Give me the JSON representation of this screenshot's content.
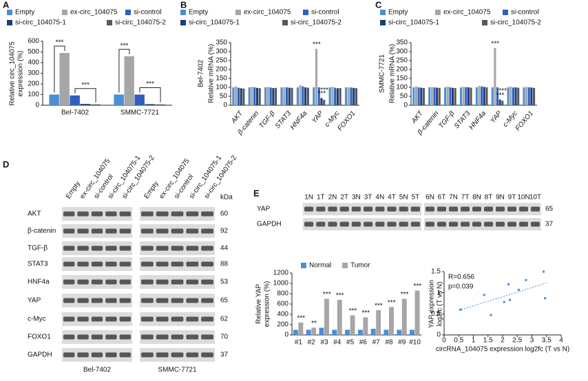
{
  "panels": [
    "A",
    "B",
    "C",
    "D",
    "E"
  ],
  "chart_data": [
    {
      "type": "bar",
      "ylabel": [
        "Relative circ_104075",
        "expression (%)"
      ],
      "categories": [
        "Bel-7402",
        "SMMC-7721"
      ],
      "series": [
        {
          "name": "Empty",
          "color": "#4a8fd6",
          "values": [
            100,
            100
          ]
        },
        {
          "name": "ex-circ_104075",
          "color": "#a6a6a6",
          "values": [
            490,
            460
          ]
        },
        {
          "name": "si-control",
          "color": "#2f5fbf",
          "values": [
            92,
            100
          ]
        },
        {
          "name": "si-circ_104075-1",
          "color": "#1a3f78",
          "values": [
            12,
            10
          ]
        },
        {
          "name": "si-circ_104075-2",
          "color": "#595959",
          "values": [
            8,
            8
          ]
        }
      ],
      "ylim": [
        0,
        600
      ],
      "yticks": [
        0,
        100,
        200,
        300,
        400,
        500,
        600
      ],
      "annotations": [
        "***",
        "***",
        "***",
        "***"
      ]
    },
    {
      "type": "bar",
      "subtitle": "Bel-7402",
      "ylabel": "Relative mRNA (%)",
      "categories": [
        "AKT",
        "β-catenin",
        "TGF-β",
        "STAT3",
        "HNF4a",
        "YAP",
        "c-Myc",
        "FOXO1"
      ],
      "series": [
        {
          "name": "Empty",
          "color": "#4a8fd6",
          "values": [
            100,
            100,
            100,
            100,
            100,
            100,
            100,
            100
          ]
        },
        {
          "name": "ex-circ_104075",
          "color": "#a6a6a6",
          "values": [
            105,
            103,
            102,
            101,
            112,
            315,
            103,
            100
          ]
        },
        {
          "name": "si-control",
          "color": "#2f5fbf",
          "values": [
            98,
            100,
            99,
            100,
            105,
            100,
            98,
            99
          ]
        },
        {
          "name": "si-circ_104075-1",
          "color": "#1a3f78",
          "values": [
            95,
            97,
            96,
            98,
            100,
            40,
            95,
            97
          ]
        },
        {
          "name": "si-circ_104075-2",
          "color": "#595959",
          "values": [
            93,
            95,
            97,
            97,
            98,
            30,
            96,
            95
          ]
        }
      ],
      "ylim": [
        0,
        350
      ],
      "yticks": [
        0,
        50,
        100,
        150,
        200,
        250,
        300,
        350
      ],
      "annotations": [
        "***",
        "***",
        "***"
      ]
    },
    {
      "type": "bar",
      "subtitle": "SMMC-7721",
      "ylabel": "Relative mRNA (%)",
      "categories": [
        "AKT",
        "β-catenin",
        "TGF-β",
        "STAT3",
        "HNF4a",
        "YAP",
        "c-Myc",
        "FOXO1"
      ],
      "series": [
        {
          "name": "Empty",
          "color": "#4a8fd6",
          "values": [
            100,
            100,
            100,
            100,
            100,
            100,
            100,
            100
          ]
        },
        {
          "name": "ex-circ_104075",
          "color": "#a6a6a6",
          "values": [
            105,
            102,
            104,
            103,
            108,
            320,
            104,
            102
          ]
        },
        {
          "name": "si-control",
          "color": "#2f5fbf",
          "values": [
            100,
            100,
            100,
            101,
            105,
            100,
            99,
            100
          ]
        },
        {
          "name": "si-circ_104075-1",
          "color": "#1a3f78",
          "values": [
            98,
            98,
            97,
            100,
            102,
            32,
            100,
            99
          ]
        },
        {
          "name": "si-circ_104075-2",
          "color": "#595959",
          "values": [
            96,
            97,
            96,
            98,
            100,
            25,
            98,
            97
          ]
        }
      ],
      "ylim": [
        0,
        350
      ],
      "yticks": [
        0,
        50,
        100,
        150,
        200,
        250,
        300,
        350
      ],
      "annotations": [
        "***",
        "***",
        "***"
      ]
    },
    {
      "type": "bar",
      "ylabel": [
        "Relative YAP",
        "expression (%)"
      ],
      "categories": [
        "#1",
        "#2",
        "#3",
        "#4",
        "#5",
        "#6",
        "#7",
        "#8",
        "#9",
        "#10"
      ],
      "series": [
        {
          "name": "Normal",
          "color": "#4a8fd6",
          "values": [
            100,
            100,
            140,
            100,
            100,
            100,
            120,
            100,
            100,
            100
          ]
        },
        {
          "name": "Tumor",
          "color": "#a6a6a6",
          "values": [
            240,
            140,
            700,
            680,
            380,
            340,
            480,
            540,
            700,
            860
          ]
        }
      ],
      "ylim": [
        0,
        1200
      ],
      "yticks": [
        0,
        200,
        400,
        600,
        800,
        1000,
        1200
      ],
      "annotations": [
        "***",
        "**",
        "***",
        "***",
        "***",
        "***",
        "***",
        "***",
        "***",
        "***"
      ]
    },
    {
      "type": "scatter",
      "xlabel": "circRNA_104075 expression log2fc (T vs N)",
      "ylabel": [
        "YAP expression",
        "log2fc (T vs N)"
      ],
      "x": [
        0.56,
        1.37,
        1.6,
        2.05,
        2.2,
        2.25,
        2.55,
        2.8,
        3.4,
        3.45
      ],
      "y": [
        0.6,
        0.95,
        0.47,
        0.78,
        1.2,
        0.83,
        1.07,
        1.3,
        1.5,
        0.87
      ],
      "color": "#3a8fd6",
      "trendline": {
        "x": [
          0.5,
          3.5
        ],
        "y": [
          0.58,
          1.23
        ]
      },
      "xlim": [
        0,
        4
      ],
      "xticks": [
        0,
        0.5,
        1,
        1.5,
        2,
        2.5,
        3,
        3.5,
        4
      ],
      "ylim": [
        0,
        1.5
      ],
      "yticks": [
        0,
        0.5,
        1,
        1.5
      ],
      "annotations": [
        "R=0.656",
        "p=0.039"
      ]
    }
  ],
  "blot_d": {
    "unit": "kDa",
    "groups": [
      {
        "name": "Bel-7402",
        "lanes": [
          "Empty",
          "ex-circ_104075",
          "si-control",
          "si-circ_104075-1",
          "si-circ_104075-2"
        ]
      },
      {
        "name": "SMMC-7721",
        "lanes": [
          "Empty",
          "ex-circ_104075",
          "si-control",
          "si-circ_104075-1",
          "si-circ_104075-2"
        ]
      }
    ],
    "rows": [
      {
        "protein": "AKT",
        "kda": 60
      },
      {
        "protein": "β-catenin",
        "kda": 92
      },
      {
        "protein": "TGF-β",
        "kda": 44
      },
      {
        "protein": "STAT3",
        "kda": 88
      },
      {
        "protein": "HNF4a",
        "kda": 53
      },
      {
        "protein": "YAP",
        "kda": 65
      },
      {
        "protein": "c-Myc",
        "kda": 62
      },
      {
        "protein": "FOXO1",
        "kda": 70
      },
      {
        "protein": "GAPDH",
        "kda": 37
      }
    ]
  },
  "blot_e": {
    "groups": [
      {
        "lanes": [
          "1N",
          "1T",
          "2N",
          "2T",
          "3N",
          "3T",
          "4N",
          "4T",
          "5N",
          "5T"
        ]
      },
      {
        "lanes": [
          "6N",
          "6T",
          "7N",
          "7T",
          "8N",
          "8T",
          "9N",
          "9T",
          "10N",
          "10T"
        ]
      }
    ],
    "rows": [
      {
        "protein": "YAP",
        "kda": 65
      },
      {
        "protein": "GAPDH",
        "kda": 37
      }
    ]
  }
}
